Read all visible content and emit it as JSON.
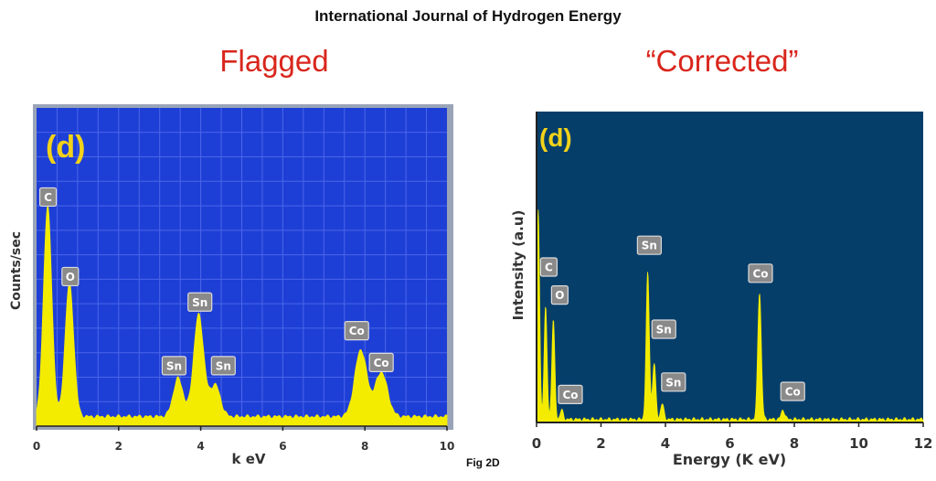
{
  "header": {
    "journal": "International Journal of Hydrogen Energy",
    "left_heading": "Flagged",
    "right_heading": "“Corrected”",
    "caption": "Fig 2D"
  },
  "colors": {
    "left_bg": "#1e3fd6",
    "right_bg": "#063e6a",
    "spectrum": "#f3ec00",
    "heading": "#d9261c",
    "panel_letter": "#f2d21a",
    "label_box": "#8a8a8a"
  },
  "chart_data": [
    {
      "type": "area",
      "panel_label": "(d)",
      "title": "",
      "xlabel": "k eV",
      "ylabel": "Counts/sec",
      "xlim": [
        0,
        10
      ],
      "ylim": [
        0,
        1
      ],
      "y_tick_labels_shown": false,
      "x_ticks": [
        0,
        2,
        4,
        6,
        8,
        10
      ],
      "grid": true,
      "baseline": 0.03,
      "peaks": [
        {
          "label": "C",
          "x": 0.27,
          "y": 0.66
        },
        {
          "label": "O",
          "x": 0.8,
          "y": 0.42
        },
        {
          "label": "Sn",
          "x": 3.45,
          "y": 0.12
        },
        {
          "label": "Sn",
          "x": 3.95,
          "y": 0.32
        },
        {
          "label": "Sn",
          "x": 4.35,
          "y": 0.1
        },
        {
          "label": "Co",
          "x": 7.9,
          "y": 0.21
        },
        {
          "label": "Co",
          "x": 8.4,
          "y": 0.14
        }
      ],
      "annotations": [
        {
          "text": "C",
          "x": 0.28,
          "y": 0.72
        },
        {
          "text": "O",
          "x": 0.82,
          "y": 0.47
        },
        {
          "text": "Sn",
          "x": 3.98,
          "y": 0.39
        },
        {
          "text": "Sn",
          "x": 3.35,
          "y": 0.19
        },
        {
          "text": "Sn",
          "x": 4.55,
          "y": 0.19
        },
        {
          "text": "Co",
          "x": 7.8,
          "y": 0.3
        },
        {
          "text": "Co",
          "x": 8.4,
          "y": 0.2
        }
      ]
    },
    {
      "type": "area",
      "panel_label": "(d)",
      "title": "",
      "xlabel": "Energy (K eV)",
      "ylabel": "Intensity (a.u)",
      "xlim": [
        0,
        12
      ],
      "ylim": [
        0,
        1
      ],
      "y_tick_labels_shown": false,
      "x_ticks": [
        0,
        2,
        4,
        6,
        8,
        10,
        12
      ],
      "grid": false,
      "baseline": 0.01,
      "peaks": [
        {
          "label": "",
          "x": 0.05,
          "y": 0.67
        },
        {
          "label": "C",
          "x": 0.28,
          "y": 0.36
        },
        {
          "label": "O",
          "x": 0.52,
          "y": 0.32
        },
        {
          "label": "Co",
          "x": 0.78,
          "y": 0.03
        },
        {
          "label": "Sn",
          "x": 3.45,
          "y": 0.47
        },
        {
          "label": "Sn",
          "x": 3.65,
          "y": 0.18
        },
        {
          "label": "Sn",
          "x": 3.9,
          "y": 0.05
        },
        {
          "label": "Co",
          "x": 6.92,
          "y": 0.41
        },
        {
          "label": "Co",
          "x": 7.65,
          "y": 0.03
        }
      ],
      "annotations": [
        {
          "text": "C",
          "x": 0.38,
          "y": 0.5
        },
        {
          "text": "O",
          "x": 0.72,
          "y": 0.41
        },
        {
          "text": "Co",
          "x": 1.05,
          "y": 0.09
        },
        {
          "text": "Sn",
          "x": 3.5,
          "y": 0.57
        },
        {
          "text": "Sn",
          "x": 3.95,
          "y": 0.3
        },
        {
          "text": "Sn",
          "x": 4.25,
          "y": 0.13
        },
        {
          "text": "Co",
          "x": 6.95,
          "y": 0.48
        },
        {
          "text": "Co",
          "x": 7.95,
          "y": 0.1
        }
      ]
    }
  ]
}
